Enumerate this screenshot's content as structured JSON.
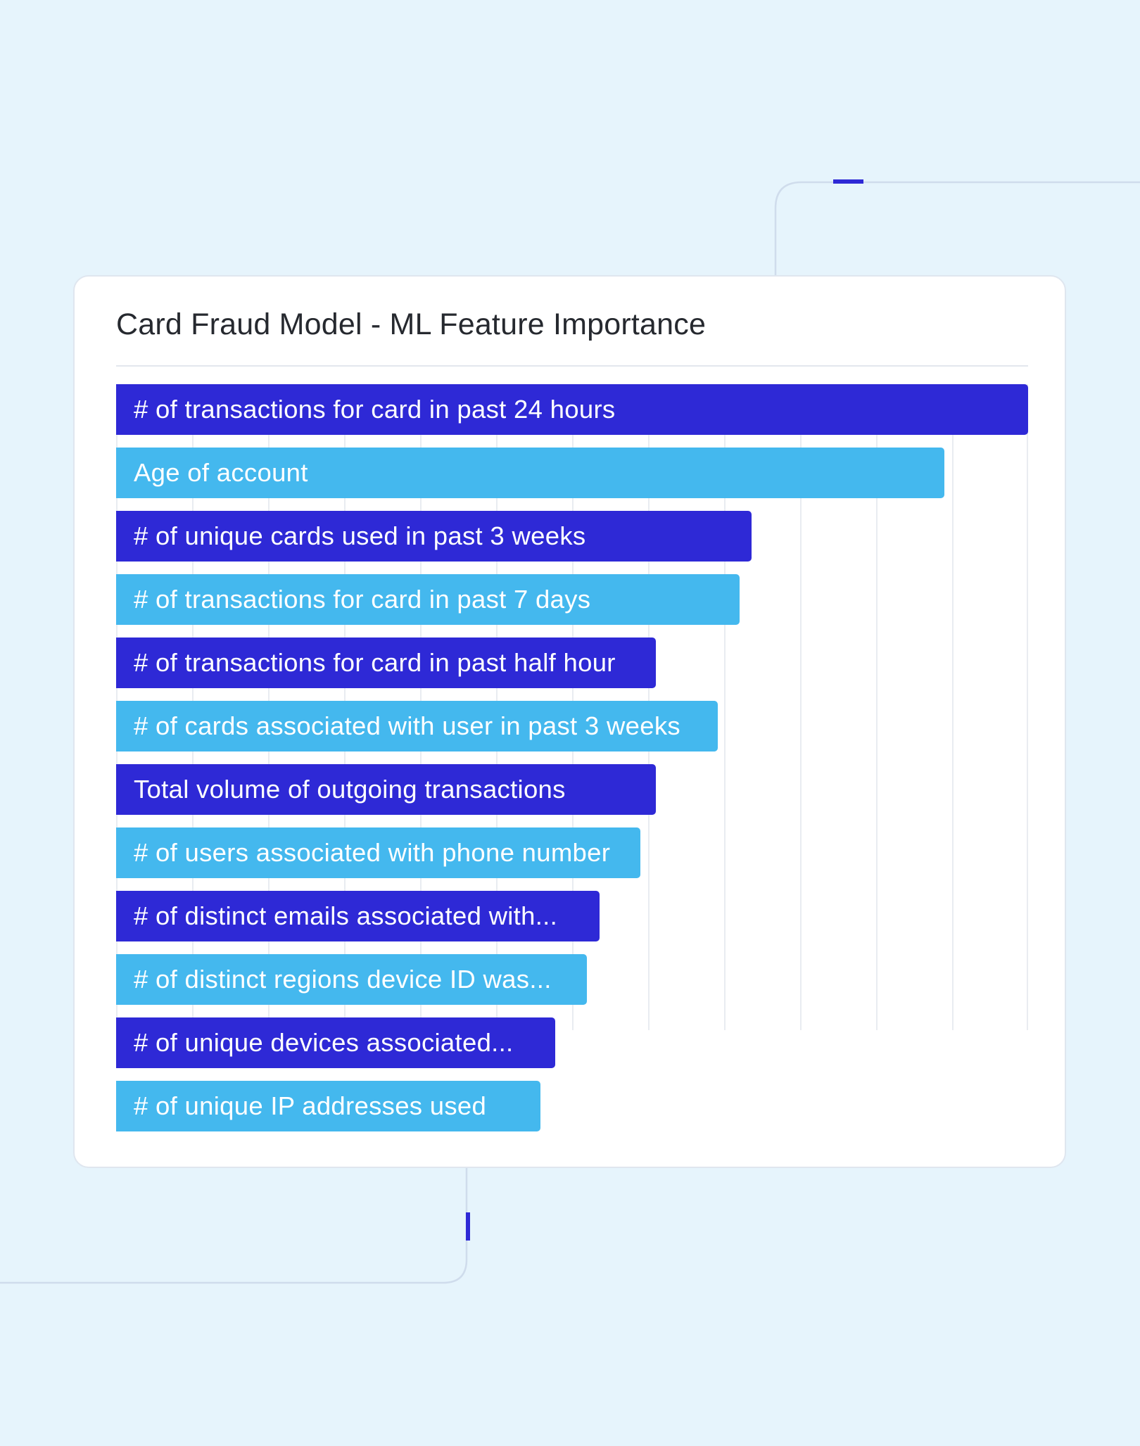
{
  "colors": {
    "page_background": "#e6f4fc",
    "card_background": "#ffffff",
    "bar_dark": "#2e29d6",
    "bar_light": "#44b8ee",
    "accent": "#2e29d6",
    "decor_line": "#cfdcec",
    "gridline": "#e9ecf1"
  },
  "chart_data": {
    "type": "bar",
    "orientation": "horizontal",
    "title": "Card Fraud Model - ML Feature Importance",
    "xlabel": "",
    "ylabel": "",
    "xlim": [
      0,
      12
    ],
    "grid": true,
    "tick_labels_shown": false,
    "bar_colors_alternate": [
      "#2e29d6",
      "#44b8ee"
    ],
    "categories": [
      "# of transactions for card in past 24 hours",
      "Age of account",
      "# of unique cards used in past 3 weeks",
      "# of transactions for card in past 7 days",
      "# of transactions for card in past half hour",
      "# of cards associated with user in past 3 weeks",
      "Total volume of outgoing transactions",
      "# of users associated with phone number",
      "# of distinct emails associated with...",
      "# of distinct regions device ID was...",
      "# of unique devices associated...",
      "# of unique IP addresses used"
    ],
    "values": [
      12.0,
      10.9,
      8.36,
      8.2,
      7.1,
      7.92,
      7.1,
      6.9,
      6.36,
      6.19,
      5.78,
      5.58
    ]
  }
}
